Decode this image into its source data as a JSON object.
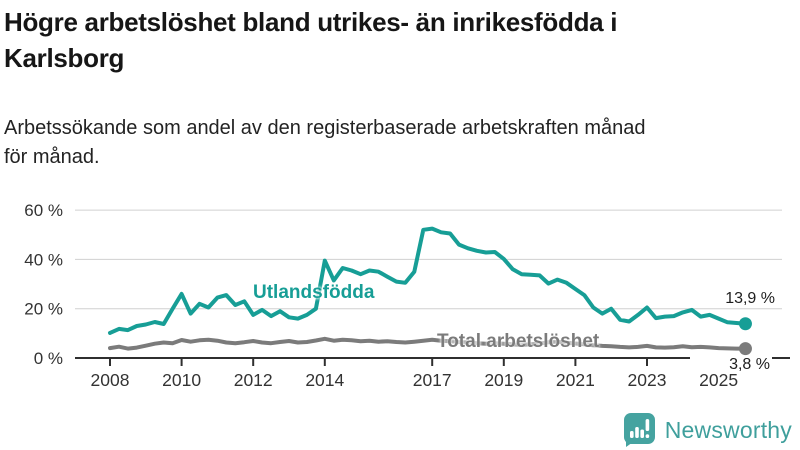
{
  "header": {
    "title_line1": "Högre arbetslöshet bland utrikes- än inrikesfödda i",
    "title_line2": "Karlsborg",
    "subtitle_line1": "Arbetssökande som andel av den registerbaserade arbetskraften månad",
    "subtitle_line2": "för månad."
  },
  "chart_data": {
    "type": "line",
    "title": "Arbetssökande som andel av den registerbaserade arbetskraften månad för månad",
    "x_unit": "year (decimal quarters)",
    "x": [
      2008,
      2008.25,
      2008.5,
      2008.75,
      2009,
      2009.25,
      2009.5,
      2009.75,
      2010,
      2010.25,
      2010.5,
      2010.75,
      2011,
      2011.25,
      2011.5,
      2011.75,
      2012,
      2012.25,
      2012.5,
      2012.75,
      2013,
      2013.25,
      2013.5,
      2013.75,
      2014,
      2014.25,
      2014.5,
      2014.75,
      2015,
      2015.25,
      2015.5,
      2015.75,
      2016,
      2016.25,
      2016.5,
      2016.75,
      2017,
      2017.25,
      2017.5,
      2017.75,
      2018,
      2018.25,
      2018.5,
      2018.75,
      2019,
      2019.25,
      2019.5,
      2019.75,
      2020,
      2020.25,
      2020.5,
      2020.75,
      2021,
      2021.25,
      2021.5,
      2021.75,
      2022,
      2022.25,
      2022.5,
      2022.75,
      2023,
      2023.25,
      2023.5,
      2023.75,
      2024,
      2024.25,
      2024.5,
      2024.75,
      2025,
      2025.25,
      2025.5,
      2025.75
    ],
    "series": [
      {
        "name": "Utlandsfödda",
        "color": "#179e96",
        "end_label": "13,9 %",
        "end_value": 13.9,
        "values": [
          10.2,
          11.8,
          11.3,
          13,
          13.6,
          14.6,
          13.8,
          20,
          26,
          18,
          22,
          20.5,
          24.5,
          25.5,
          21.5,
          23,
          17.5,
          19.5,
          17,
          19,
          16.5,
          16,
          17.5,
          20,
          39.5,
          31.5,
          36.5,
          35.5,
          34,
          35.5,
          35,
          33,
          31,
          30.5,
          35,
          52,
          52.5,
          51,
          50.5,
          46,
          44.5,
          43.5,
          42.8,
          43,
          40.2,
          36,
          34,
          33.8,
          33.5,
          30.2,
          31.8,
          30.5,
          28,
          25.5,
          20.5,
          18,
          20,
          15.5,
          14.8,
          17.5,
          20.5,
          16.2,
          16.8,
          17,
          18.5,
          19.5,
          16.8,
          17.5,
          16,
          14.5,
          14.2,
          13.9
        ]
      },
      {
        "name": "Total arbetslöshet",
        "color": "#7b7b7b",
        "end_label": "3,8 %",
        "end_value": 3.8,
        "values": [
          4,
          4.6,
          3.8,
          4.2,
          5,
          5.8,
          6.3,
          6,
          7.3,
          6.6,
          7.2,
          7.4,
          7,
          6.3,
          6,
          6.4,
          6.9,
          6.3,
          6,
          6.5,
          6.9,
          6.3,
          6.5,
          7.1,
          7.8,
          7,
          7.4,
          7.2,
          6.8,
          7,
          6.6,
          6.8,
          6.5,
          6.3,
          6.6,
          7,
          7.4,
          7,
          6.8,
          6.5,
          6.3,
          6,
          5.8,
          6,
          5.8,
          5.5,
          5.3,
          5.6,
          5.8,
          6.4,
          6.6,
          6.2,
          5.9,
          5.6,
          5.2,
          4.9,
          4.8,
          4.5,
          4.3,
          4.5,
          4.9,
          4.3,
          4.2,
          4.4,
          4.8,
          4.4,
          4.5,
          4.3,
          4,
          3.9,
          3.8,
          3.8
        ]
      }
    ],
    "ylim": [
      0,
      60
    ],
    "yticks": [
      0,
      20,
      40,
      60
    ],
    "ytick_labels": [
      "0 %",
      "20 %",
      "40 %",
      "60 %"
    ],
    "xticks": [
      2008,
      2010,
      2012,
      2014,
      2017,
      2019,
      2021,
      2023,
      2025
    ],
    "grid": "horizontal",
    "legend_position": "inline-labels",
    "axis_color": "#2f2f2f",
    "grid_color": "#d0d0d0"
  },
  "footer": {
    "brand": "Newsworthy",
    "logo_color": "#45a3a0",
    "logo_icon": "bar-chart-speech-bubble"
  }
}
